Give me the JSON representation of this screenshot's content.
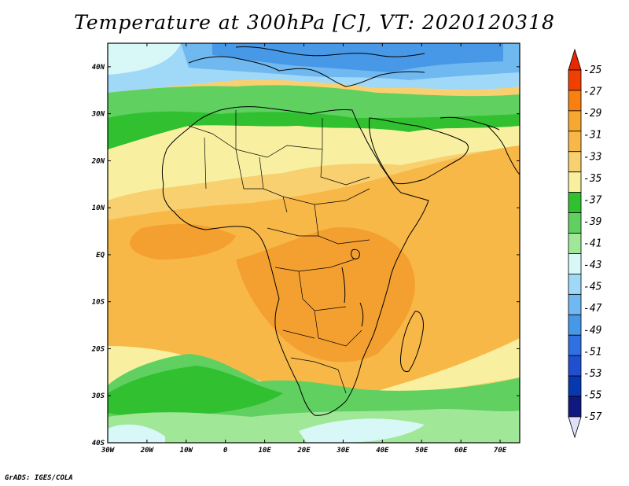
{
  "title": "Temperature at 300hPa [C], VT: 2020120318",
  "credit": "GrADS: IGES/COLA",
  "x_ticks": [
    "30W",
    "20W",
    "10W",
    "0",
    "10E",
    "20E",
    "30E",
    "40E",
    "50E",
    "60E",
    "70E"
  ],
  "y_ticks": [
    "40N",
    "30N",
    "20N",
    "10N",
    "EQ",
    "10S",
    "20S",
    "30S",
    "40S"
  ],
  "colorbar": {
    "labels": [
      "-25",
      "-27",
      "-29",
      "-31",
      "-33",
      "-35",
      "-37",
      "-39",
      "-41",
      "-43",
      "-45",
      "-47",
      "-49",
      "-51",
      "-53",
      "-55",
      "-57"
    ],
    "colors": [
      "#f04000",
      "#f88010",
      "#f8a830",
      "#f8b848",
      "#f8d070",
      "#f8f0a0",
      "#30c030",
      "#60d060",
      "#a0e898",
      "#d8f8f8",
      "#a0d8f8",
      "#70b8f0",
      "#4898e8",
      "#3070e0",
      "#2050d0",
      "#0838b0",
      "#101880"
    ],
    "top_triangle_color": "#e82800",
    "bottom_triangle_color": "#e0e0f8"
  },
  "colors": {
    "land_border": "#000000",
    "warm": "#f8b848",
    "hot": "#f4a030",
    "pale": "#f8d888",
    "cream": "#f8f0a0",
    "green": "#30c030",
    "light_green": "#a0e898",
    "blue": "#4898e8"
  }
}
